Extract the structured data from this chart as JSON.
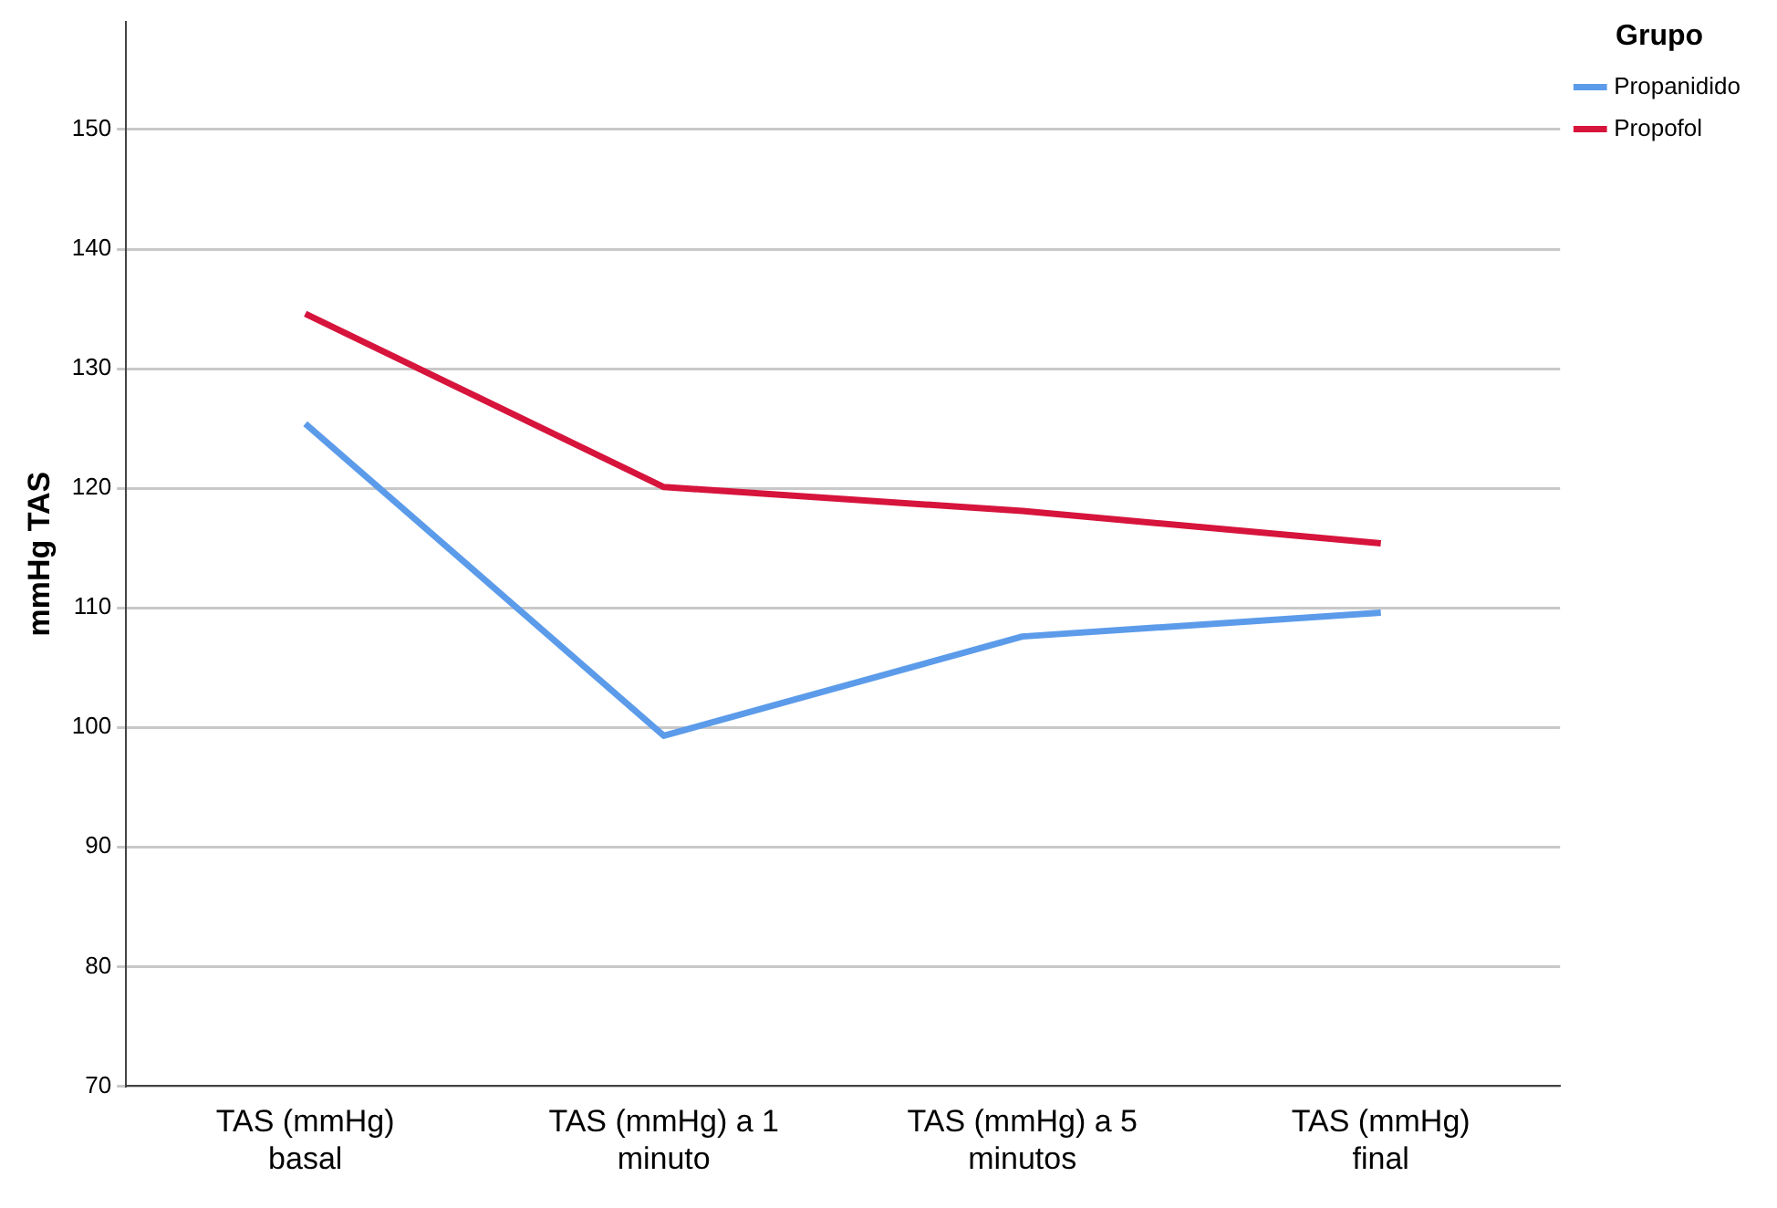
{
  "chart_data": {
    "type": "line",
    "ylabel": "mmHg TAS",
    "legend_title": "Grupo",
    "legend": "top right",
    "grid": "y",
    "marker": "none",
    "line_style": "solid",
    "categories": [
      "TAS (mmHg) basal",
      "TAS (mmHg) a 1 minuto",
      "TAS (mmHg) a 5 minutos",
      "TAS (mmHg) final"
    ],
    "series": [
      {
        "name": "Propanidido",
        "color": "#5b9bea",
        "values": [
          125.4,
          99.3,
          107.6,
          109.6
        ]
      },
      {
        "name": "Propofol",
        "color": "#d6143c",
        "values": [
          134.6,
          120.1,
          118.1,
          115.4
        ]
      }
    ],
    "ylim": [
      70,
      159
    ],
    "yticks": [
      70,
      80,
      90,
      100,
      110,
      120,
      130,
      140,
      150
    ]
  }
}
